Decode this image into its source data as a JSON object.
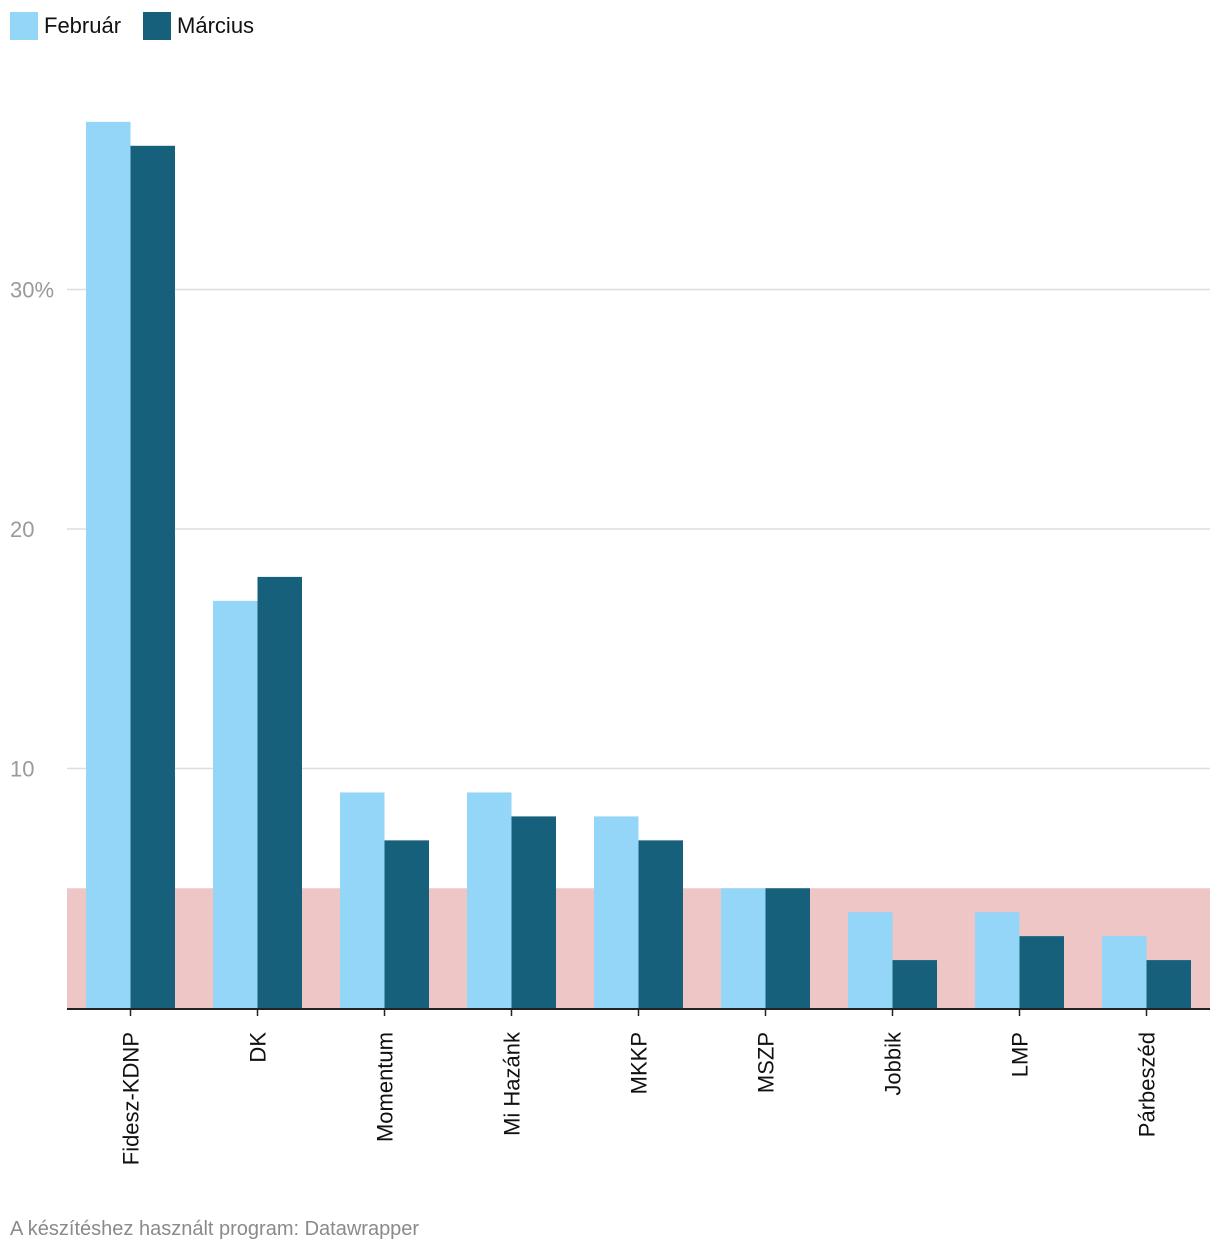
{
  "colors": {
    "februar": "#94d6f7",
    "marcius": "#17607b",
    "threshold_band": "#efc6c6",
    "grid": "#dddddd",
    "axis": "#222222"
  },
  "legend": [
    {
      "label": "Február",
      "color": "#94d6f7"
    },
    {
      "label": "Március",
      "color": "#17607b"
    }
  ],
  "footer": {
    "credit": "A készítéshez használt program: Datawrapper"
  },
  "chart_data": {
    "type": "bar",
    "title": "",
    "xlabel": "",
    "ylabel": "",
    "categories": [
      "Fidesz-KDNP",
      "DK",
      "Momentum",
      "Mi Hazánk",
      "MKKP",
      "MSZP",
      "Jobbik",
      "LMP",
      "Párbeszéd"
    ],
    "series": [
      {
        "name": "Február",
        "values": [
          37,
          17,
          9,
          9,
          8,
          5,
          4,
          4,
          3
        ]
      },
      {
        "name": "Március",
        "values": [
          36,
          18,
          7,
          8,
          7,
          5,
          2,
          3,
          2
        ]
      }
    ],
    "ylim": [
      0,
      40
    ],
    "yticks": [
      10,
      20,
      30
    ],
    "ytick_labels": [
      "10",
      "20",
      "30%"
    ],
    "threshold_band": [
      0,
      5
    ],
    "grid": true,
    "legend_position": "top-left"
  }
}
